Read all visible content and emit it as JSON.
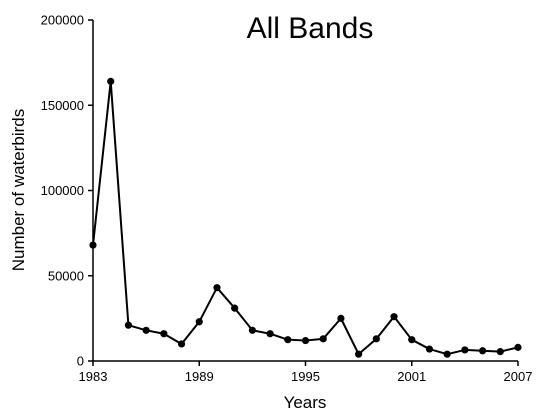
{
  "chart_data": {
    "type": "line",
    "title": "All Bands",
    "xlabel": "Years",
    "ylabel": "Number of waterbirds",
    "xlim": [
      1983,
      2007
    ],
    "ylim": [
      0,
      200000
    ],
    "x_ticks": [
      1983,
      1989,
      1995,
      2001,
      2007
    ],
    "y_ticks": [
      0,
      50000,
      100000,
      150000,
      200000
    ],
    "x_tick_labels": [
      "1983",
      "1989",
      "1995",
      "2001",
      "2007"
    ],
    "y_tick_labels": [
      "0",
      "50000",
      "100000",
      "150000",
      "200000"
    ],
    "grid": false,
    "legend": "none",
    "series": [
      {
        "color": "#000000",
        "points": [
          {
            "x": 1983,
            "y": 68000
          },
          {
            "x": 1984,
            "y": 164000
          },
          {
            "x": 1985,
            "y": 21000
          },
          {
            "x": 1986,
            "y": 18000
          },
          {
            "x": 1987,
            "y": 16000
          },
          {
            "x": 1988,
            "y": 10000
          },
          {
            "x": 1989,
            "y": 23000
          },
          {
            "x": 1990,
            "y": 43000
          },
          {
            "x": 1991,
            "y": 31000
          },
          {
            "x": 1992,
            "y": 18000
          },
          {
            "x": 1993,
            "y": 16000
          },
          {
            "x": 1994,
            "y": 12500
          },
          {
            "x": 1995,
            "y": 12000
          },
          {
            "x": 1996,
            "y": 13000
          },
          {
            "x": 1997,
            "y": 25000
          },
          {
            "x": 1998,
            "y": 4000
          },
          {
            "x": 1999,
            "y": 13000
          },
          {
            "x": 2000,
            "y": 26000
          },
          {
            "x": 2001,
            "y": 12500
          },
          {
            "x": 2002,
            "y": 7000
          },
          {
            "x": 2003,
            "y": 4000
          },
          {
            "x": 2004,
            "y": 6500
          },
          {
            "x": 2005,
            "y": 6000
          },
          {
            "x": 2006,
            "y": 5500
          },
          {
            "x": 2007,
            "y": 8000
          }
        ]
      }
    ]
  }
}
